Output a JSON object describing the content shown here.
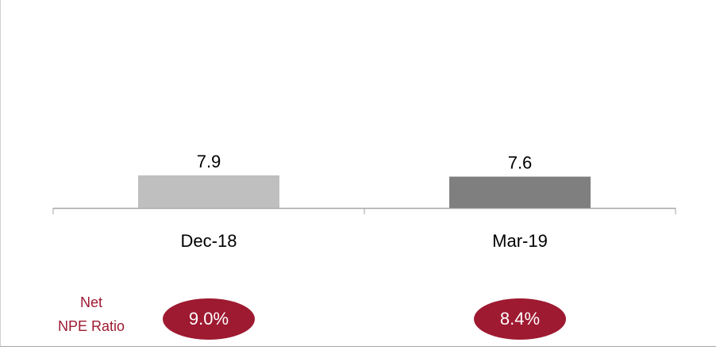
{
  "chart_data": {
    "type": "bar",
    "categories": [
      "Dec-18",
      "Mar-19"
    ],
    "values": [
      7.9,
      7.6
    ],
    "colors": [
      "#bfbfbf",
      "#7f7f7f"
    ],
    "ylim": [
      0,
      47
    ],
    "grid": false,
    "ratio_label": [
      "Net",
      "NPE Ratio"
    ],
    "ratio_values": [
      9.0,
      8.4
    ],
    "ratio_value_labels": [
      "9.0%",
      "8.4%"
    ],
    "ratio_color": "#9e1a31"
  }
}
